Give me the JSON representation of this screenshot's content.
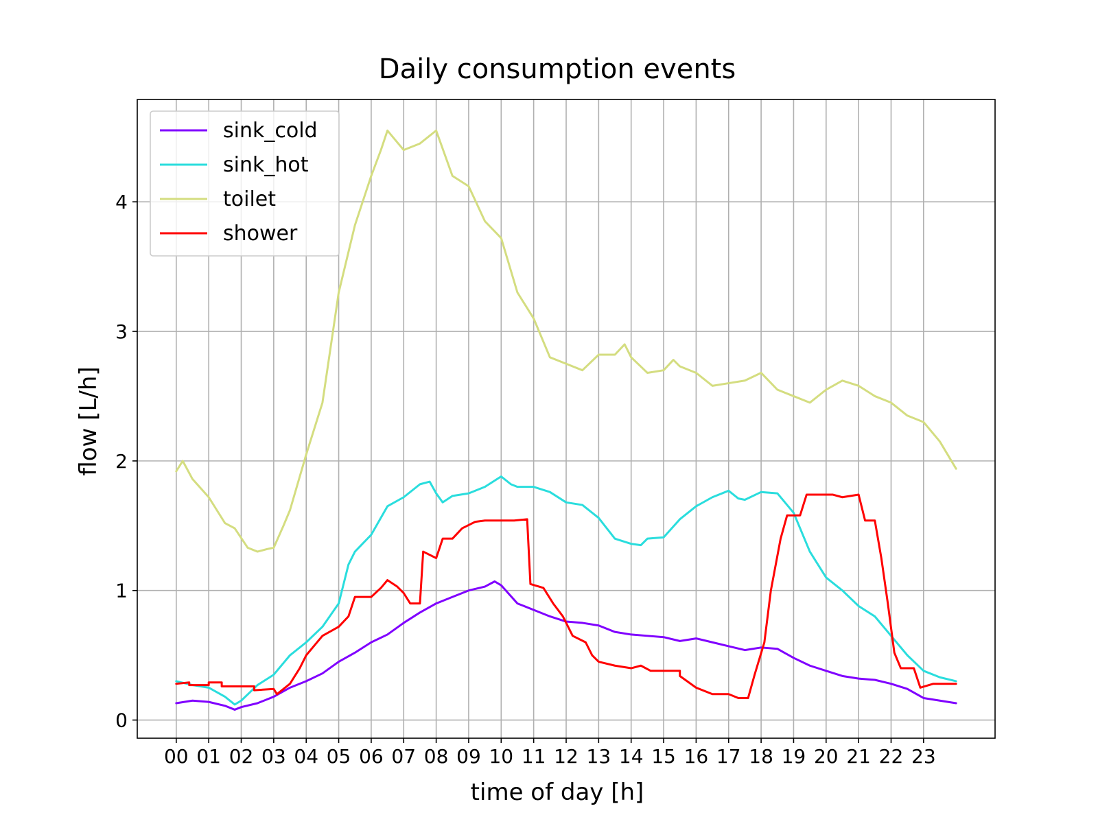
{
  "chart_data": {
    "type": "line",
    "title": "Daily consumption events",
    "xlabel": "time of day [h]",
    "ylabel": "flow [L/h]",
    "xlim": [
      -1.2,
      25.2
    ],
    "ylim": [
      -0.14,
      4.79
    ],
    "grid": true,
    "legend_position": "top-left",
    "x_ticks": [
      0,
      1,
      2,
      3,
      4,
      5,
      6,
      7,
      8,
      9,
      10,
      11,
      12,
      13,
      14,
      15,
      16,
      17,
      18,
      19,
      20,
      21,
      22,
      23
    ],
    "x_tick_labels": [
      "00",
      "01",
      "02",
      "03",
      "04",
      "05",
      "06",
      "07",
      "08",
      "09",
      "10",
      "11",
      "12",
      "13",
      "14",
      "15",
      "16",
      "17",
      "18",
      "19",
      "20",
      "21",
      "22",
      "23"
    ],
    "y_ticks": [
      0,
      1,
      2,
      3,
      4
    ],
    "y_tick_labels": [
      "0",
      "1",
      "2",
      "3",
      "4"
    ],
    "series": [
      {
        "name": "sink_cold",
        "color": "#8000ff",
        "points": [
          [
            0.0,
            0.13
          ],
          [
            0.5,
            0.15
          ],
          [
            1.0,
            0.14
          ],
          [
            1.5,
            0.11
          ],
          [
            1.8,
            0.08
          ],
          [
            2.0,
            0.1
          ],
          [
            2.5,
            0.13
          ],
          [
            3.0,
            0.18
          ],
          [
            3.5,
            0.25
          ],
          [
            4.0,
            0.3
          ],
          [
            4.5,
            0.36
          ],
          [
            5.0,
            0.45
          ],
          [
            5.5,
            0.52
          ],
          [
            6.0,
            0.6
          ],
          [
            6.5,
            0.66
          ],
          [
            7.0,
            0.75
          ],
          [
            7.5,
            0.83
          ],
          [
            8.0,
            0.9
          ],
          [
            8.5,
            0.95
          ],
          [
            9.0,
            1.0
          ],
          [
            9.5,
            1.03
          ],
          [
            9.8,
            1.07
          ],
          [
            10.0,
            1.04
          ],
          [
            10.5,
            0.9
          ],
          [
            11.0,
            0.85
          ],
          [
            11.5,
            0.8
          ],
          [
            12.0,
            0.76
          ],
          [
            12.5,
            0.75
          ],
          [
            13.0,
            0.73
          ],
          [
            13.5,
            0.68
          ],
          [
            14.0,
            0.66
          ],
          [
            14.5,
            0.65
          ],
          [
            15.0,
            0.64
          ],
          [
            15.5,
            0.61
          ],
          [
            16.0,
            0.63
          ],
          [
            16.5,
            0.6
          ],
          [
            17.0,
            0.57
          ],
          [
            17.5,
            0.54
          ],
          [
            18.0,
            0.56
          ],
          [
            18.5,
            0.55
          ],
          [
            19.0,
            0.48
          ],
          [
            19.5,
            0.42
          ],
          [
            20.0,
            0.38
          ],
          [
            20.5,
            0.34
          ],
          [
            21.0,
            0.32
          ],
          [
            21.5,
            0.31
          ],
          [
            22.0,
            0.28
          ],
          [
            22.5,
            0.24
          ],
          [
            23.0,
            0.17
          ],
          [
            23.5,
            0.15
          ],
          [
            24.0,
            0.13
          ]
        ]
      },
      {
        "name": "sink_hot",
        "color": "#2adddd",
        "points": [
          [
            0.0,
            0.3
          ],
          [
            0.5,
            0.27
          ],
          [
            1.0,
            0.25
          ],
          [
            1.5,
            0.18
          ],
          [
            1.8,
            0.12
          ],
          [
            2.0,
            0.15
          ],
          [
            2.5,
            0.27
          ],
          [
            3.0,
            0.35
          ],
          [
            3.5,
            0.5
          ],
          [
            4.0,
            0.6
          ],
          [
            4.5,
            0.72
          ],
          [
            5.0,
            0.9
          ],
          [
            5.3,
            1.2
          ],
          [
            5.5,
            1.3
          ],
          [
            6.0,
            1.43
          ],
          [
            6.5,
            1.65
          ],
          [
            7.0,
            1.72
          ],
          [
            7.5,
            1.82
          ],
          [
            7.8,
            1.84
          ],
          [
            8.0,
            1.75
          ],
          [
            8.2,
            1.68
          ],
          [
            8.5,
            1.73
          ],
          [
            9.0,
            1.75
          ],
          [
            9.5,
            1.8
          ],
          [
            10.0,
            1.88
          ],
          [
            10.3,
            1.82
          ],
          [
            10.5,
            1.8
          ],
          [
            11.0,
            1.8
          ],
          [
            11.5,
            1.76
          ],
          [
            12.0,
            1.68
          ],
          [
            12.5,
            1.66
          ],
          [
            13.0,
            1.56
          ],
          [
            13.5,
            1.4
          ],
          [
            14.0,
            1.36
          ],
          [
            14.3,
            1.35
          ],
          [
            14.5,
            1.4
          ],
          [
            15.0,
            1.41
          ],
          [
            15.5,
            1.55
          ],
          [
            16.0,
            1.65
          ],
          [
            16.5,
            1.72
          ],
          [
            17.0,
            1.77
          ],
          [
            17.3,
            1.71
          ],
          [
            17.5,
            1.7
          ],
          [
            18.0,
            1.76
          ],
          [
            18.5,
            1.75
          ],
          [
            19.0,
            1.6
          ],
          [
            19.5,
            1.3
          ],
          [
            20.0,
            1.1
          ],
          [
            20.5,
            1.0
          ],
          [
            21.0,
            0.88
          ],
          [
            21.5,
            0.8
          ],
          [
            22.0,
            0.65
          ],
          [
            22.5,
            0.5
          ],
          [
            23.0,
            0.38
          ],
          [
            23.5,
            0.33
          ],
          [
            24.0,
            0.3
          ]
        ]
      },
      {
        "name": "toilet",
        "color": "#d4dd80",
        "points": [
          [
            0.0,
            1.92
          ],
          [
            0.2,
            2.0
          ],
          [
            0.5,
            1.86
          ],
          [
            1.0,
            1.72
          ],
          [
            1.5,
            1.52
          ],
          [
            1.8,
            1.48
          ],
          [
            2.2,
            1.33
          ],
          [
            2.5,
            1.3
          ],
          [
            2.8,
            1.32
          ],
          [
            3.0,
            1.33
          ],
          [
            3.3,
            1.5
          ],
          [
            3.5,
            1.62
          ],
          [
            4.0,
            2.05
          ],
          [
            4.5,
            2.45
          ],
          [
            5.0,
            3.3
          ],
          [
            5.5,
            3.82
          ],
          [
            6.0,
            4.2
          ],
          [
            6.3,
            4.4
          ],
          [
            6.5,
            4.55
          ],
          [
            7.0,
            4.4
          ],
          [
            7.5,
            4.45
          ],
          [
            8.0,
            4.55
          ],
          [
            8.5,
            4.2
          ],
          [
            9.0,
            4.12
          ],
          [
            9.5,
            3.85
          ],
          [
            10.0,
            3.72
          ],
          [
            10.5,
            3.3
          ],
          [
            11.0,
            3.1
          ],
          [
            11.5,
            2.8
          ],
          [
            12.0,
            2.75
          ],
          [
            12.5,
            2.7
          ],
          [
            13.0,
            2.82
          ],
          [
            13.5,
            2.82
          ],
          [
            13.8,
            2.9
          ],
          [
            14.0,
            2.8
          ],
          [
            14.5,
            2.68
          ],
          [
            15.0,
            2.7
          ],
          [
            15.3,
            2.78
          ],
          [
            15.5,
            2.73
          ],
          [
            16.0,
            2.68
          ],
          [
            16.5,
            2.58
          ],
          [
            17.0,
            2.6
          ],
          [
            17.5,
            2.62
          ],
          [
            18.0,
            2.68
          ],
          [
            18.5,
            2.55
          ],
          [
            19.0,
            2.5
          ],
          [
            19.5,
            2.45
          ],
          [
            20.0,
            2.55
          ],
          [
            20.5,
            2.62
          ],
          [
            21.0,
            2.58
          ],
          [
            21.5,
            2.5
          ],
          [
            22.0,
            2.45
          ],
          [
            22.5,
            2.35
          ],
          [
            23.0,
            2.3
          ],
          [
            23.5,
            2.15
          ],
          [
            24.0,
            1.94
          ]
        ]
      },
      {
        "name": "shower",
        "color": "#ff0000",
        "points": [
          [
            0.0,
            0.28
          ],
          [
            0.4,
            0.29
          ],
          [
            0.4,
            0.27
          ],
          [
            1.0,
            0.27
          ],
          [
            1.0,
            0.29
          ],
          [
            1.4,
            0.29
          ],
          [
            1.4,
            0.26
          ],
          [
            2.4,
            0.26
          ],
          [
            2.4,
            0.23
          ],
          [
            3.0,
            0.24
          ],
          [
            3.1,
            0.2
          ],
          [
            3.5,
            0.28
          ],
          [
            3.8,
            0.4
          ],
          [
            4.0,
            0.5
          ],
          [
            4.5,
            0.65
          ],
          [
            5.0,
            0.72
          ],
          [
            5.3,
            0.8
          ],
          [
            5.5,
            0.95
          ],
          [
            6.0,
            0.95
          ],
          [
            6.3,
            1.02
          ],
          [
            6.5,
            1.08
          ],
          [
            6.8,
            1.03
          ],
          [
            7.0,
            0.98
          ],
          [
            7.2,
            0.9
          ],
          [
            7.5,
            0.9
          ],
          [
            7.6,
            1.3
          ],
          [
            8.0,
            1.25
          ],
          [
            8.2,
            1.4
          ],
          [
            8.5,
            1.4
          ],
          [
            8.8,
            1.48
          ],
          [
            9.2,
            1.53
          ],
          [
            9.5,
            1.54
          ],
          [
            10.0,
            1.54
          ],
          [
            10.4,
            1.54
          ],
          [
            10.8,
            1.55
          ],
          [
            10.9,
            1.05
          ],
          [
            11.3,
            1.02
          ],
          [
            11.6,
            0.9
          ],
          [
            11.9,
            0.8
          ],
          [
            12.2,
            0.65
          ],
          [
            12.6,
            0.6
          ],
          [
            12.8,
            0.5
          ],
          [
            13.0,
            0.45
          ],
          [
            13.5,
            0.42
          ],
          [
            14.0,
            0.4
          ],
          [
            14.3,
            0.42
          ],
          [
            14.6,
            0.38
          ],
          [
            15.5,
            0.38
          ],
          [
            15.5,
            0.34
          ],
          [
            16.0,
            0.25
          ],
          [
            16.5,
            0.2
          ],
          [
            17.0,
            0.2
          ],
          [
            17.3,
            0.17
          ],
          [
            17.6,
            0.17
          ],
          [
            17.8,
            0.35
          ],
          [
            18.1,
            0.6
          ],
          [
            18.3,
            1.0
          ],
          [
            18.6,
            1.4
          ],
          [
            18.8,
            1.58
          ],
          [
            19.2,
            1.58
          ],
          [
            19.4,
            1.74
          ],
          [
            19.8,
            1.74
          ],
          [
            20.2,
            1.74
          ],
          [
            20.5,
            1.72
          ],
          [
            21.0,
            1.74
          ],
          [
            21.2,
            1.54
          ],
          [
            21.5,
            1.54
          ],
          [
            21.7,
            1.25
          ],
          [
            21.9,
            0.9
          ],
          [
            22.1,
            0.52
          ],
          [
            22.3,
            0.4
          ],
          [
            22.7,
            0.4
          ],
          [
            22.9,
            0.25
          ],
          [
            23.3,
            0.28
          ],
          [
            24.0,
            0.28
          ]
        ]
      }
    ]
  }
}
